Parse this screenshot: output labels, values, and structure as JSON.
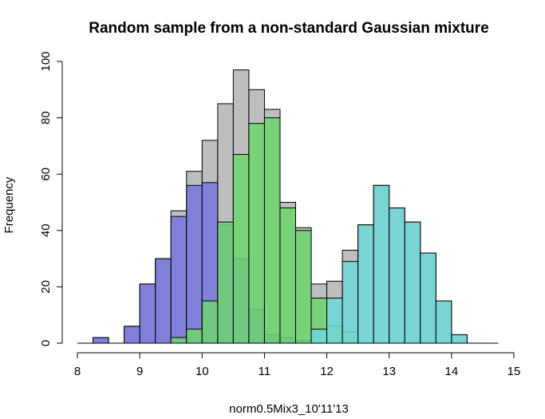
{
  "chart_data": {
    "type": "bar",
    "title": "Random sample from a non-standard Gaussian mixture",
    "xlabel": "norm0.5Mix3_10'11'13",
    "ylabel": "Frequency",
    "xlim": [
      8,
      15
    ],
    "ylim": [
      0,
      100
    ],
    "x_ticks": [
      "8",
      "9",
      "10",
      "11",
      "12",
      "13",
      "14",
      "15"
    ],
    "y_ticks": [
      "0",
      "20",
      "40",
      "60",
      "80",
      "100"
    ],
    "bin_width": 0.25,
    "bin_starts": [
      8.0,
      8.25,
      8.5,
      8.75,
      9.0,
      9.25,
      9.5,
      9.75,
      10.0,
      10.25,
      10.5,
      10.75,
      11.0,
      11.25,
      11.5,
      11.75,
      12.0,
      12.25,
      12.5,
      12.75,
      13.0,
      13.25,
      13.5,
      13.75,
      14.0,
      14.25,
      14.5
    ],
    "grid": false,
    "legend": "none",
    "series": [
      {
        "color": "#bebebe",
        "values": [
          0,
          2,
          0,
          6,
          21,
          30,
          47,
          61,
          72,
          85,
          97,
          90,
          83,
          50,
          41,
          21,
          22,
          33,
          42,
          56,
          48,
          43,
          32,
          15,
          3,
          0,
          0
        ]
      },
      {
        "color": "#7575dd",
        "values": [
          0,
          2,
          0,
          6,
          21,
          30,
          45,
          56,
          57,
          42,
          30,
          12,
          3,
          2,
          1,
          0,
          0,
          0,
          0,
          0,
          0,
          0,
          0,
          0,
          0,
          0,
          0
        ]
      },
      {
        "color": "#6dd66d",
        "values": [
          0,
          0,
          0,
          0,
          0,
          0,
          2,
          5,
          15,
          43,
          67,
          78,
          80,
          48,
          40,
          16,
          6,
          4,
          0,
          0,
          0,
          0,
          0,
          0,
          0,
          0,
          0
        ]
      },
      {
        "color": "#6ed8d8",
        "values": [
          0,
          0,
          0,
          0,
          0,
          0,
          0,
          0,
          0,
          0,
          0,
          0,
          0,
          0,
          0,
          5,
          16,
          29,
          42,
          56,
          48,
          43,
          32,
          15,
          3,
          0,
          0
        ]
      }
    ]
  }
}
